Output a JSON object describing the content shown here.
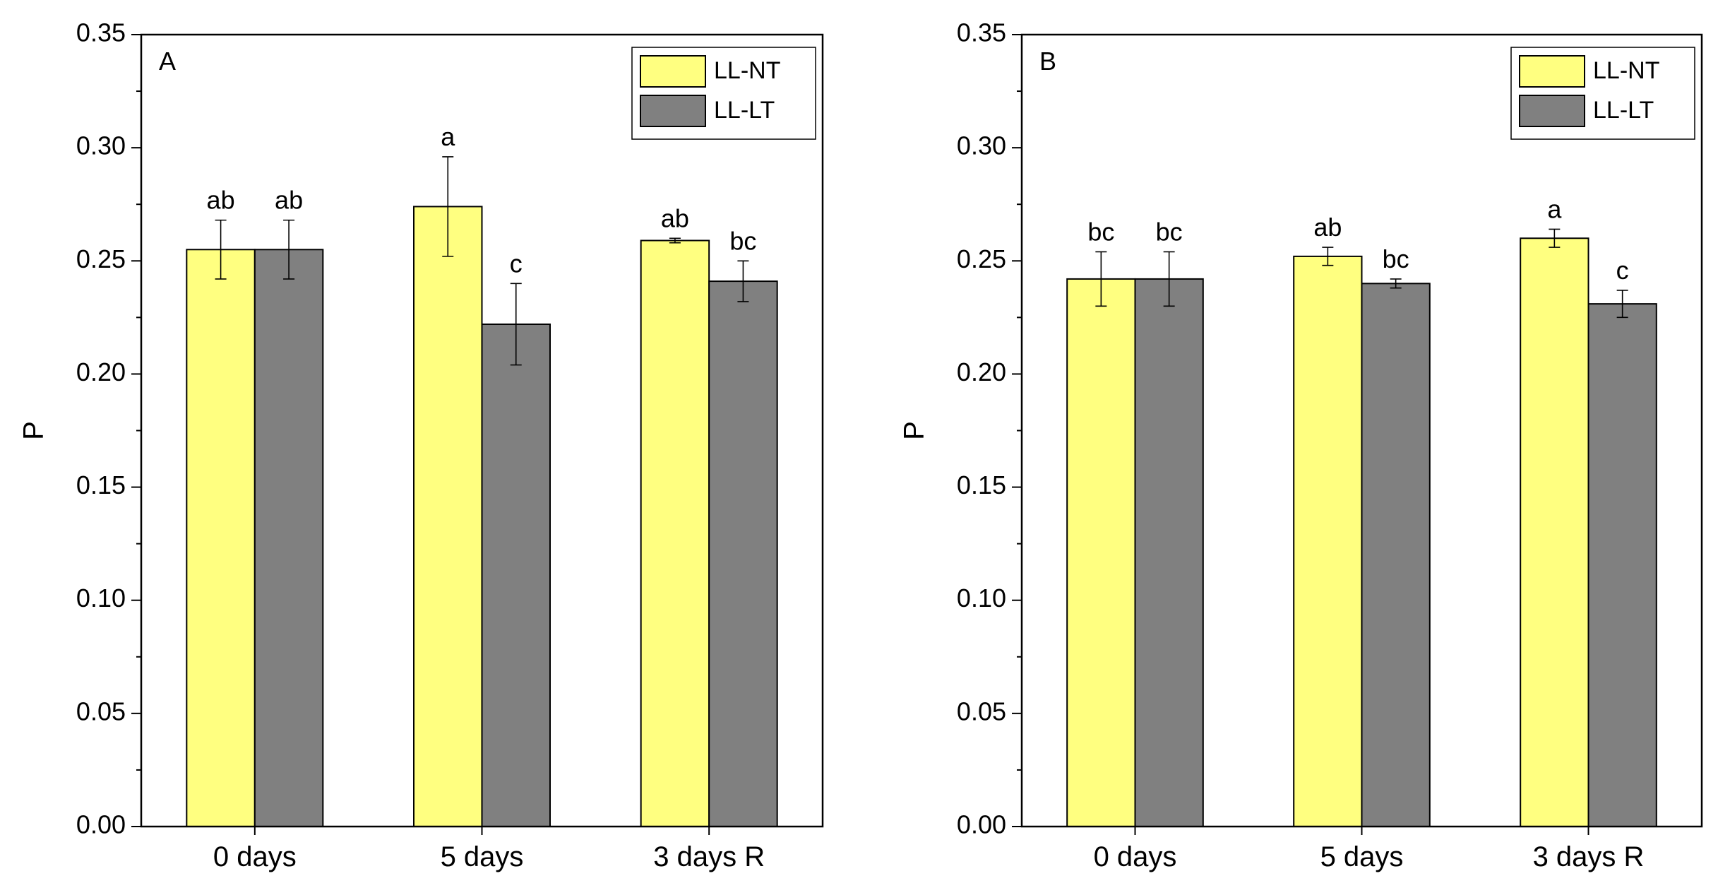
{
  "colors": {
    "ll_nt": "#ffff80",
    "ll_lt": "#808080",
    "axis": "#000000"
  },
  "chart_data": [
    {
      "type": "bar",
      "panel_label": "A",
      "ylabel": "P",
      "xlabel": "",
      "ylim": [
        0,
        0.35
      ],
      "yticks": [
        "0.00",
        "0.05",
        "0.10",
        "0.15",
        "0.20",
        "0.25",
        "0.30",
        "0.35"
      ],
      "categories": [
        "0 days",
        "5 days",
        "3 days R"
      ],
      "legend_position": "top-right",
      "series": [
        {
          "name": "LL-NT",
          "color": "#ffff80",
          "values": [
            0.255,
            0.274,
            0.259
          ],
          "errors": [
            0.013,
            0.022,
            0.001
          ],
          "sig": [
            "ab",
            "a",
            "ab"
          ]
        },
        {
          "name": "LL-LT",
          "color": "#808080",
          "values": [
            0.255,
            0.222,
            0.241
          ],
          "errors": [
            0.013,
            0.018,
            0.009
          ],
          "sig": [
            "ab",
            "c",
            "bc"
          ]
        }
      ]
    },
    {
      "type": "bar",
      "panel_label": "B",
      "ylabel": "P",
      "xlabel": "",
      "ylim": [
        0,
        0.35
      ],
      "yticks": [
        "0.00",
        "0.05",
        "0.10",
        "0.15",
        "0.20",
        "0.25",
        "0.30",
        "0.35"
      ],
      "categories": [
        "0 days",
        "5 days",
        "3 days R"
      ],
      "legend_position": "top-right",
      "series": [
        {
          "name": "LL-NT",
          "color": "#ffff80",
          "values": [
            0.242,
            0.252,
            0.26
          ],
          "errors": [
            0.012,
            0.004,
            0.004
          ],
          "sig": [
            "bc",
            "ab",
            "a"
          ]
        },
        {
          "name": "LL-LT",
          "color": "#808080",
          "values": [
            0.242,
            0.24,
            0.231
          ],
          "errors": [
            0.012,
            0.002,
            0.006
          ],
          "sig": [
            "bc",
            "bc",
            "c"
          ]
        }
      ]
    }
  ]
}
